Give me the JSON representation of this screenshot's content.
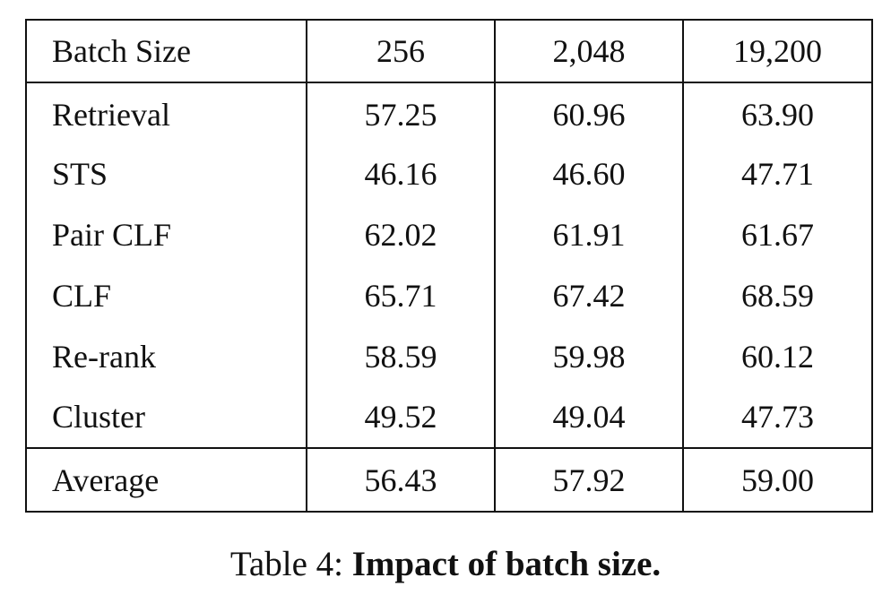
{
  "table": {
    "header": [
      "Batch Size",
      "256",
      "2,048",
      "19,200"
    ],
    "rows": [
      {
        "label": "Retrieval",
        "values": [
          "57.25",
          "60.96",
          "63.90"
        ],
        "bold": [
          false,
          false,
          true
        ]
      },
      {
        "label": "STS",
        "values": [
          "46.16",
          "46.60",
          "47.71"
        ],
        "bold": [
          false,
          false,
          true
        ]
      },
      {
        "label": "Pair CLF",
        "values": [
          "62.02",
          "61.91",
          "61.67"
        ],
        "bold": [
          true,
          false,
          false
        ]
      },
      {
        "label": "CLF",
        "values": [
          "65.71",
          "67.42",
          "68.59"
        ],
        "bold": [
          false,
          false,
          true
        ]
      },
      {
        "label": "Re-rank",
        "values": [
          "58.59",
          "59.98",
          "60.12"
        ],
        "bold": [
          false,
          false,
          true
        ]
      },
      {
        "label": "Cluster",
        "values": [
          "49.52",
          "49.04",
          "47.73"
        ],
        "bold": [
          true,
          false,
          false
        ]
      }
    ],
    "footer": {
      "label": "Average",
      "values": [
        "56.43",
        "57.92",
        "59.00"
      ],
      "bold": [
        false,
        false,
        true
      ]
    }
  },
  "caption": {
    "prefix": "Table 4:",
    "text": "Impact of batch size."
  }
}
